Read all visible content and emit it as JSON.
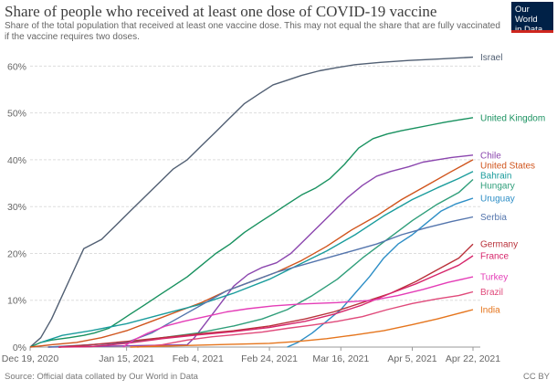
{
  "header": {
    "title": "Share of people who received at least one dose of COVID-19 vaccine",
    "subtitle": "Share of the total population that received at least one vaccine dose. This may not equal the share that are fully vaccinated if the vaccine requires two doses.",
    "logo_line1": "Our World",
    "logo_line2": "in Data",
    "logo_color": "#002147",
    "logo_accent": "#ce261e"
  },
  "footer": {
    "source": "Source: Official data collated by Our World in Data",
    "license": "CC BY"
  },
  "chart_data": {
    "type": "line",
    "title": "Share of people who received at least one dose of COVID-19 vaccine",
    "xlabel": "",
    "ylabel": "",
    "x_range": [
      "2020-12-19",
      "2021-04-22"
    ],
    "ylim": [
      0,
      63
    ],
    "x_ticks": [
      {
        "date": "2020-12-19",
        "label": "Dec 19, 2020"
      },
      {
        "date": "2021-01-15",
        "label": "Jan 15, 2021"
      },
      {
        "date": "2021-02-04",
        "label": "Feb 4, 2021"
      },
      {
        "date": "2021-02-24",
        "label": "Feb 24, 2021"
      },
      {
        "date": "2021-03-16",
        "label": "Mar 16, 2021"
      },
      {
        "date": "2021-04-05",
        "label": "Apr 5, 2021"
      },
      {
        "date": "2021-04-22",
        "label": "Apr 22, 2021"
      }
    ],
    "y_ticks": [
      {
        "value": 0,
        "label": "0%"
      },
      {
        "value": 10,
        "label": "10%"
      },
      {
        "value": 20,
        "label": "20%"
      },
      {
        "value": 30,
        "label": "30%"
      },
      {
        "value": 40,
        "label": "40%"
      },
      {
        "value": 50,
        "label": "50%"
      },
      {
        "value": 60,
        "label": "60%"
      }
    ],
    "grid": "horizontal dotted",
    "legend": "inline labels at line ends",
    "series": [
      {
        "name": "Israel",
        "color": "#515f73",
        "points": [
          [
            "2020-12-19",
            0
          ],
          [
            "2020-12-22",
            2
          ],
          [
            "2020-12-25",
            6
          ],
          [
            "2020-12-28",
            11
          ],
          [
            "2020-12-31",
            16
          ],
          [
            "2021-01-03",
            21
          ],
          [
            "2021-01-08",
            23
          ],
          [
            "2021-01-12",
            26
          ],
          [
            "2021-01-16",
            29
          ],
          [
            "2021-01-20",
            32
          ],
          [
            "2021-01-24",
            35
          ],
          [
            "2021-01-28",
            38
          ],
          [
            "2021-02-01",
            40
          ],
          [
            "2021-02-05",
            43
          ],
          [
            "2021-02-09",
            46
          ],
          [
            "2021-02-13",
            49
          ],
          [
            "2021-02-17",
            52
          ],
          [
            "2021-02-21",
            54
          ],
          [
            "2021-02-25",
            56
          ],
          [
            "2021-03-01",
            57
          ],
          [
            "2021-03-05",
            58
          ],
          [
            "2021-03-10",
            59
          ],
          [
            "2021-03-15",
            59.7
          ],
          [
            "2021-03-20",
            60.3
          ],
          [
            "2021-03-27",
            60.8
          ],
          [
            "2021-04-04",
            61.2
          ],
          [
            "2021-04-12",
            61.5
          ],
          [
            "2021-04-22",
            61.9
          ]
        ]
      },
      {
        "name": "United Kingdom",
        "color": "#18915f",
        "points": [
          [
            "2020-12-19",
            0
          ],
          [
            "2020-12-22",
            1
          ],
          [
            "2020-12-25",
            1.5
          ],
          [
            "2020-12-30",
            2
          ],
          [
            "2021-01-03",
            2.5
          ],
          [
            "2021-01-06",
            3
          ],
          [
            "2021-01-10",
            4
          ],
          [
            "2021-01-13",
            5.5
          ],
          [
            "2021-01-16",
            7
          ],
          [
            "2021-01-20",
            9
          ],
          [
            "2021-01-24",
            11
          ],
          [
            "2021-01-28",
            13
          ],
          [
            "2021-02-01",
            15
          ],
          [
            "2021-02-05",
            17.5
          ],
          [
            "2021-02-09",
            20
          ],
          [
            "2021-02-13",
            22
          ],
          [
            "2021-02-17",
            24.5
          ],
          [
            "2021-02-21",
            26.5
          ],
          [
            "2021-02-25",
            28.5
          ],
          [
            "2021-03-01",
            30.5
          ],
          [
            "2021-03-05",
            32.5
          ],
          [
            "2021-03-09",
            34
          ],
          [
            "2021-03-13",
            36
          ],
          [
            "2021-03-17",
            39
          ],
          [
            "2021-03-21",
            42.5
          ],
          [
            "2021-03-25",
            44.5
          ],
          [
            "2021-03-29",
            45.5
          ],
          [
            "2021-04-02",
            46.2
          ],
          [
            "2021-04-06",
            46.8
          ],
          [
            "2021-04-10",
            47.4
          ],
          [
            "2021-04-14",
            48
          ],
          [
            "2021-04-18",
            48.5
          ],
          [
            "2021-04-22",
            49
          ]
        ]
      },
      {
        "name": "Chile",
        "color": "#8b46ae",
        "points": [
          [
            "2020-12-24",
            0
          ],
          [
            "2021-01-10",
            0.2
          ],
          [
            "2021-01-25",
            0.4
          ],
          [
            "2021-02-01",
            0.5
          ],
          [
            "2021-02-03",
            2
          ],
          [
            "2021-02-06",
            5
          ],
          [
            "2021-02-10",
            9
          ],
          [
            "2021-02-14",
            13
          ],
          [
            "2021-02-18",
            15.5
          ],
          [
            "2021-02-22",
            17
          ],
          [
            "2021-02-26",
            18
          ],
          [
            "2021-03-02",
            20
          ],
          [
            "2021-03-06",
            23
          ],
          [
            "2021-03-10",
            26
          ],
          [
            "2021-03-14",
            29
          ],
          [
            "2021-03-18",
            32
          ],
          [
            "2021-03-22",
            34.5
          ],
          [
            "2021-03-26",
            36.5
          ],
          [
            "2021-03-30",
            37.5
          ],
          [
            "2021-04-04",
            38.5
          ],
          [
            "2021-04-08",
            39.5
          ],
          [
            "2021-04-12",
            40
          ],
          [
            "2021-04-16",
            40.5
          ],
          [
            "2021-04-22",
            41
          ]
        ]
      },
      {
        "name": "United States",
        "color": "#d0541c",
        "points": [
          [
            "2020-12-19",
            0
          ],
          [
            "2020-12-25",
            0.5
          ],
          [
            "2021-01-01",
            1
          ],
          [
            "2021-01-08",
            2
          ],
          [
            "2021-01-15",
            3.5
          ],
          [
            "2021-01-22",
            5.5
          ],
          [
            "2021-01-29",
            7.5
          ],
          [
            "2021-02-05",
            9.5
          ],
          [
            "2021-02-12",
            12
          ],
          [
            "2021-02-19",
            14
          ],
          [
            "2021-02-26",
            16
          ],
          [
            "2021-03-05",
            18.5
          ],
          [
            "2021-03-12",
            21.5
          ],
          [
            "2021-03-19",
            25
          ],
          [
            "2021-03-26",
            28
          ],
          [
            "2021-04-02",
            31.5
          ],
          [
            "2021-04-09",
            34.5
          ],
          [
            "2021-04-16",
            37.5
          ],
          [
            "2021-04-22",
            40
          ]
        ]
      },
      {
        "name": "Bahrain",
        "color": "#1a9c9c",
        "points": [
          [
            "2020-12-22",
            1
          ],
          [
            "2020-12-28",
            2.5
          ],
          [
            "2021-01-05",
            3.5
          ],
          [
            "2021-01-15",
            5
          ],
          [
            "2021-01-25",
            7
          ],
          [
            "2021-02-04",
            9
          ],
          [
            "2021-02-14",
            11.5
          ],
          [
            "2021-02-24",
            14.5
          ],
          [
            "2021-03-04",
            17.5
          ],
          [
            "2021-03-12",
            20.5
          ],
          [
            "2021-03-20",
            24
          ],
          [
            "2021-03-28",
            28
          ],
          [
            "2021-04-05",
            31.5
          ],
          [
            "2021-04-12",
            34
          ],
          [
            "2021-04-18",
            36
          ],
          [
            "2021-04-22",
            37.5
          ]
        ]
      },
      {
        "name": "Hungary",
        "color": "#2f9e7a",
        "points": [
          [
            "2020-12-27",
            0
          ],
          [
            "2021-01-05",
            0.5
          ],
          [
            "2021-01-15",
            1
          ],
          [
            "2021-01-25",
            2
          ],
          [
            "2021-02-04",
            3
          ],
          [
            "2021-02-14",
            4.5
          ],
          [
            "2021-02-22",
            6
          ],
          [
            "2021-03-01",
            8
          ],
          [
            "2021-03-08",
            11
          ],
          [
            "2021-03-15",
            14.5
          ],
          [
            "2021-03-22",
            19
          ],
          [
            "2021-03-29",
            23
          ],
          [
            "2021-04-05",
            27
          ],
          [
            "2021-04-12",
            30.5
          ],
          [
            "2021-04-18",
            33
          ],
          [
            "2021-04-22",
            35.8
          ]
        ]
      },
      {
        "name": "Uruguay",
        "color": "#2d8ec6",
        "points": [
          [
            "2021-03-01",
            0
          ],
          [
            "2021-03-04",
            1
          ],
          [
            "2021-03-08",
            3
          ],
          [
            "2021-03-12",
            5.5
          ],
          [
            "2021-03-16",
            8
          ],
          [
            "2021-03-20",
            11.5
          ],
          [
            "2021-03-24",
            15
          ],
          [
            "2021-03-28",
            19
          ],
          [
            "2021-04-01",
            22
          ],
          [
            "2021-04-05",
            24
          ],
          [
            "2021-04-09",
            26.5
          ],
          [
            "2021-04-13",
            29
          ],
          [
            "2021-04-17",
            30.5
          ],
          [
            "2021-04-22",
            31.8
          ]
        ]
      },
      {
        "name": "Serbia",
        "color": "#5475ad",
        "points": [
          [
            "2020-12-24",
            0
          ],
          [
            "2021-01-05",
            0.5
          ],
          [
            "2021-01-15",
            1
          ],
          [
            "2021-01-22",
            3
          ],
          [
            "2021-01-29",
            6
          ],
          [
            "2021-02-05",
            9
          ],
          [
            "2021-02-12",
            12
          ],
          [
            "2021-02-19",
            14
          ],
          [
            "2021-02-26",
            16
          ],
          [
            "2021-03-05",
            17.5
          ],
          [
            "2021-03-12",
            19
          ],
          [
            "2021-03-19",
            20.5
          ],
          [
            "2021-03-26",
            22
          ],
          [
            "2021-04-02",
            24
          ],
          [
            "2021-04-09",
            25.5
          ],
          [
            "2021-04-16",
            26.8
          ],
          [
            "2021-04-22",
            27.8
          ]
        ]
      },
      {
        "name": "Germany",
        "color": "#b9313a",
        "points": [
          [
            "2020-12-27",
            0
          ],
          [
            "2021-01-05",
            0.5
          ],
          [
            "2021-01-15",
            1.2
          ],
          [
            "2021-01-25",
            2
          ],
          [
            "2021-02-04",
            2.8
          ],
          [
            "2021-02-14",
            3.5
          ],
          [
            "2021-02-24",
            4.5
          ],
          [
            "2021-03-06",
            6
          ],
          [
            "2021-03-14",
            7.5
          ],
          [
            "2021-03-22",
            9.5
          ],
          [
            "2021-03-30",
            11.5
          ],
          [
            "2021-04-06",
            14
          ],
          [
            "2021-04-12",
            16.5
          ],
          [
            "2021-04-18",
            19
          ],
          [
            "2021-04-22",
            22
          ]
        ]
      },
      {
        "name": "France",
        "color": "#d6266b",
        "points": [
          [
            "2020-12-27",
            0
          ],
          [
            "2021-01-05",
            0.1
          ],
          [
            "2021-01-15",
            0.8
          ],
          [
            "2021-01-25",
            1.8
          ],
          [
            "2021-02-04",
            2.6
          ],
          [
            "2021-02-14",
            3.3
          ],
          [
            "2021-02-24",
            4.2
          ],
          [
            "2021-03-06",
            5.5
          ],
          [
            "2021-03-14",
            7
          ],
          [
            "2021-03-22",
            9
          ],
          [
            "2021-03-30",
            11.5
          ],
          [
            "2021-04-06",
            13.5
          ],
          [
            "2021-04-12",
            15.5
          ],
          [
            "2021-04-18",
            17.5
          ],
          [
            "2021-04-22",
            19.5
          ]
        ]
      },
      {
        "name": "Turkey",
        "color": "#e43db7",
        "points": [
          [
            "2021-01-14",
            0
          ],
          [
            "2021-01-17",
            1.5
          ],
          [
            "2021-01-21",
            3
          ],
          [
            "2021-01-26",
            4.5
          ],
          [
            "2021-01-31",
            5.5
          ],
          [
            "2021-02-06",
            6.5
          ],
          [
            "2021-02-12",
            7.5
          ],
          [
            "2021-02-18",
            8.2
          ],
          [
            "2021-02-25",
            8.8
          ],
          [
            "2021-03-05",
            9.2
          ],
          [
            "2021-03-15",
            9.5
          ],
          [
            "2021-03-25",
            10
          ],
          [
            "2021-04-01",
            11
          ],
          [
            "2021-04-08",
            12.3
          ],
          [
            "2021-04-15",
            13.8
          ],
          [
            "2021-04-22",
            15
          ]
        ]
      },
      {
        "name": "Brazil",
        "color": "#e0497a",
        "points": [
          [
            "2021-01-18",
            0
          ],
          [
            "2021-01-25",
            0.5
          ],
          [
            "2021-02-01",
            1.5
          ],
          [
            "2021-02-08",
            2.2
          ],
          [
            "2021-02-15",
            2.7
          ],
          [
            "2021-02-22",
            3.2
          ],
          [
            "2021-03-01",
            4
          ],
          [
            "2021-03-08",
            4.7
          ],
          [
            "2021-03-15",
            5.5
          ],
          [
            "2021-03-22",
            6.5
          ],
          [
            "2021-03-29",
            8
          ],
          [
            "2021-04-05",
            9.3
          ],
          [
            "2021-04-12",
            10.3
          ],
          [
            "2021-04-18",
            11
          ],
          [
            "2021-04-22",
            11.8
          ]
        ]
      },
      {
        "name": "India",
        "color": "#e5751d",
        "points": [
          [
            "2021-01-16",
            0
          ],
          [
            "2021-01-25",
            0.2
          ],
          [
            "2021-02-04",
            0.4
          ],
          [
            "2021-02-14",
            0.6
          ],
          [
            "2021-02-24",
            0.8
          ],
          [
            "2021-03-04",
            1.2
          ],
          [
            "2021-03-12",
            1.8
          ],
          [
            "2021-03-20",
            2.6
          ],
          [
            "2021-03-28",
            3.5
          ],
          [
            "2021-04-05",
            4.8
          ],
          [
            "2021-04-12",
            6
          ],
          [
            "2021-04-18",
            7.2
          ],
          [
            "2021-04-22",
            8
          ]
        ]
      }
    ]
  }
}
